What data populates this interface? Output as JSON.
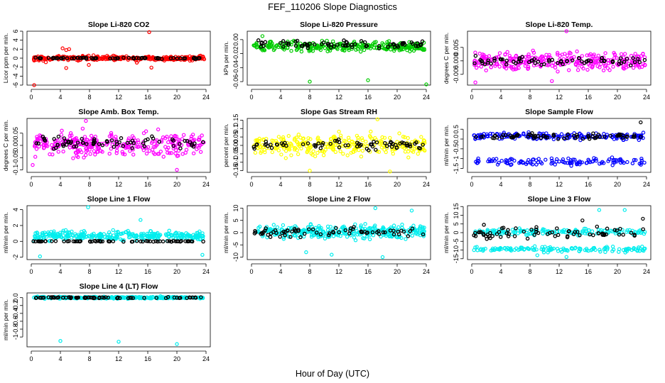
{
  "figure": {
    "title": "FEF_110206  Slope Diagnostics",
    "xlabel": "Hour of Day (UTC)"
  },
  "chart_data": [
    {
      "type": "scatter",
      "title": "Slope Li-820 CO2",
      "ylabel": "Licor ppm per min.",
      "xlim": [
        0,
        24
      ],
      "ylim": [
        -6,
        6
      ],
      "yticks": [
        -6,
        -4,
        -2,
        0,
        2,
        4,
        6
      ],
      "xticks": [
        0,
        4,
        8,
        12,
        16,
        20,
        24
      ],
      "series": [
        {
          "color": "#ff0000",
          "center": 0,
          "spread": 0.5,
          "outliers": [
            [
              4.3,
              2.2
            ],
            [
              4.8,
              1.8
            ],
            [
              5.2,
              2.0
            ],
            [
              7.9,
              -1.5
            ],
            [
              4.8,
              -2.2
            ],
            [
              16.2,
              5.8
            ],
            [
              16.5,
              -2.1
            ],
            [
              0.4,
              -6
            ],
            [
              2.0,
              -0.9
            ],
            [
              14.5,
              -1.0
            ]
          ]
        },
        {
          "color": "#000000",
          "center": 0,
          "spread": 0.15,
          "outliers": []
        }
      ]
    },
    {
      "type": "scatter",
      "title": "Slope Li-820 Pressure",
      "ylabel": "kPa per min.",
      "xlim": [
        0,
        24
      ],
      "ylim": [
        -0.065,
        0.012
      ],
      "yticks": [
        -0.06,
        -0.04,
        -0.02,
        0
      ],
      "xticks": [
        0,
        4,
        8,
        12,
        16,
        20,
        24
      ],
      "series": [
        {
          "color": "#00cc00",
          "center": -0.01,
          "spread": 0.007,
          "outliers": [
            [
              8,
              -0.06
            ],
            [
              16,
              -0.058
            ],
            [
              24,
              -0.064
            ],
            [
              1.5,
              0.005
            ]
          ]
        },
        {
          "color": "#000000",
          "center": -0.007,
          "spread": 0.005,
          "outliers": []
        }
      ]
    },
    {
      "type": "scatter",
      "title": "Slope Li-820 Temp.",
      "ylabel": "degrees C per min.",
      "xlim": [
        0,
        24
      ],
      "ylim": [
        -0.009,
        0.011
      ],
      "yticks": [
        -0.005,
        0,
        0.005
      ],
      "xticks": [
        0,
        4,
        8,
        12,
        16,
        20,
        24
      ],
      "series": [
        {
          "color": "#ff00ff",
          "center": 0,
          "spread": 0.0035,
          "outliers": [
            [
              13,
              0.011
            ],
            [
              0.5,
              -0.008
            ],
            [
              11,
              -0.0075
            ]
          ]
        },
        {
          "color": "#000000",
          "center": 0,
          "spread": 0.0017,
          "outliers": []
        }
      ]
    },
    {
      "type": "scatter",
      "title": "Slope Amb. Box Temp.",
      "ylabel": "degrees C per min.",
      "xlim": [
        0,
        24
      ],
      "ylim": [
        -0.11,
        0.11
      ],
      "yticks": [
        -0.1,
        -0.05,
        0,
        0.05
      ],
      "xticks": [
        0,
        4,
        8,
        12,
        16,
        20,
        24
      ],
      "series": [
        {
          "color": "#ff00ff",
          "center": 0.005,
          "spread": 0.045,
          "outliers": [
            [
              7.5,
              0.1
            ],
            [
              20,
              -0.1
            ],
            [
              0.2,
              -0.08
            ]
          ]
        },
        {
          "color": "#000000",
          "center": 0.01,
          "spread": 0.028,
          "outliers": []
        }
      ]
    },
    {
      "type": "scatter",
      "title": "Slope Gas Stream RH",
      "ylabel": "percent per min.",
      "xlim": [
        0,
        24
      ],
      "ylim": [
        -0.16,
        0.16
      ],
      "yticks": [
        -0.15,
        -0.1,
        -0.05,
        0,
        0.05,
        0.1,
        0.15
      ],
      "xticks": [
        0,
        4,
        8,
        12,
        16,
        20,
        24
      ],
      "series": [
        {
          "color": "#ffff00",
          "center": 0,
          "spread": 0.06,
          "outliers": [
            [
              17.3,
              0.155
            ],
            [
              19,
              -0.155
            ],
            [
              8,
              -0.15
            ]
          ]
        },
        {
          "color": "#000000",
          "center": 0.005,
          "spread": 0.028,
          "outliers": []
        }
      ]
    },
    {
      "type": "scatter",
      "title": "Slope Sample Flow",
      "ylabel": "ml/min per min.",
      "xlim": [
        0,
        24
      ],
      "ylim": [
        -1.7,
        1.05
      ],
      "yticks": [
        -1.5,
        -1,
        -0.5,
        0,
        0.5
      ],
      "xticks": [
        0,
        4,
        8,
        12,
        16,
        20,
        24
      ],
      "series": [
        {
          "color": "#0000ff",
          "center": 0.15,
          "spread": 0.18,
          "band": [
            -1.15,
            0.15
          ],
          "outliers": []
        },
        {
          "color": "#000000",
          "center": 0.15,
          "spread": 0.14,
          "outliers": [
            [
              23.2,
              0.85
            ]
          ]
        }
      ]
    },
    {
      "type": "scatter",
      "title": "Slope Line 1 Flow",
      "ylabel": "ml/min per min.",
      "xlim": [
        0,
        24
      ],
      "ylim": [
        -2.3,
        4.5
      ],
      "yticks": [
        -2,
        0,
        2,
        4
      ],
      "xticks": [
        0,
        4,
        8,
        12,
        16,
        20,
        24
      ],
      "series": [
        {
          "color": "#00eeee",
          "center": 0.7,
          "spread": 0.6,
          "outliers": [
            [
              7.8,
              4.3
            ],
            [
              1.2,
              -1.9
            ],
            [
              23.5,
              -1.7
            ],
            [
              15,
              2.7
            ]
          ]
        },
        {
          "color": "#000000",
          "center": 0,
          "spread": 0.05,
          "outliers": []
        }
      ]
    },
    {
      "type": "scatter",
      "title": "Slope Line 2 Flow",
      "ylabel": "ml/min per min.",
      "xlim": [
        0,
        24
      ],
      "ylim": [
        -11,
        11
      ],
      "yticks": [
        -10,
        -5,
        0,
        5,
        10
      ],
      "xticks": [
        0,
        4,
        8,
        12,
        16,
        20,
        24
      ],
      "series": [
        {
          "color": "#00eeee",
          "center": 0.5,
          "spread": 2.8,
          "outliers": [
            [
              17,
              10
            ],
            [
              11,
              -9
            ],
            [
              18,
              -10
            ],
            [
              22,
              9
            ],
            [
              7.5,
              -8
            ]
          ]
        },
        {
          "color": "#000000",
          "center": 0,
          "spread": 2.2,
          "outliers": []
        }
      ]
    },
    {
      "type": "scatter",
      "title": "Slope Line 3 Flow",
      "ylabel": "ml/min per min.",
      "xlim": [
        0,
        24
      ],
      "ylim": [
        -15.5,
        15.5
      ],
      "yticks": [
        -15,
        -10,
        -5,
        0,
        5,
        10,
        15
      ],
      "xticks": [
        0,
        4,
        8,
        12,
        16,
        20,
        24
      ],
      "series": [
        {
          "color": "#00eeee",
          "center": 0.5,
          "spread": 1.8,
          "band": [
            -9.5,
            1
          ],
          "outliers": [
            [
              17.5,
              13
            ],
            [
              21,
              13
            ],
            [
              9,
              -13
            ],
            [
              13,
              -14
            ]
          ]
        },
        {
          "color": "#000000",
          "center": 0,
          "spread": 3.2,
          "outliers": [
            [
              23.5,
              8
            ],
            [
              15.2,
              7
            ]
          ]
        }
      ]
    },
    {
      "type": "scatter",
      "title": "Slope Line 4 (LT) Flow",
      "ylabel": "ml/min per min.",
      "xlim": [
        0,
        24
      ],
      "ylim": [
        -1.25,
        0.12
      ],
      "yticks": [
        -1,
        -0.8,
        -0.6,
        -0.4,
        -0.2,
        0
      ],
      "xticks": [
        0,
        4,
        8,
        12,
        16,
        20,
        24
      ],
      "series": [
        {
          "color": "#00eeee",
          "center": 0,
          "spread": 0.025,
          "outliers": [
            [
              4,
              -1.1
            ],
            [
              12,
              -1.12
            ],
            [
              20,
              -1.18
            ]
          ]
        },
        {
          "color": "#000000",
          "center": 0,
          "spread": 0.015,
          "outliers": []
        }
      ]
    }
  ]
}
